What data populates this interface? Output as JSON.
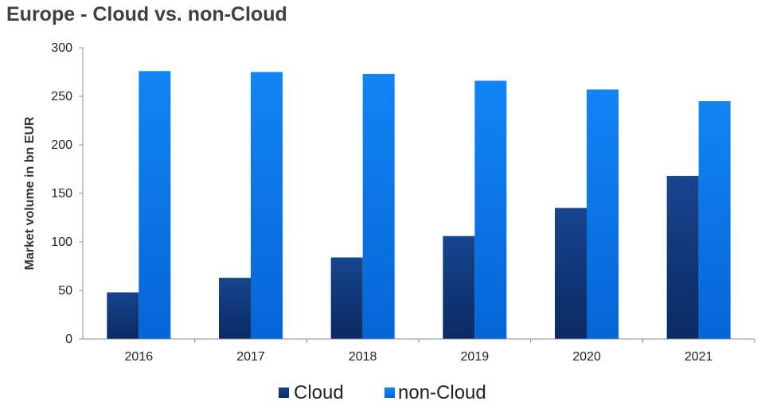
{
  "chart_data": {
    "type": "bar",
    "title": "Europe - Cloud vs. non-Cloud",
    "xlabel": "",
    "ylabel": "Market volume in bn EUR",
    "categories": [
      "2016",
      "2017",
      "2018",
      "2019",
      "2020",
      "2021"
    ],
    "yticks": [
      "0",
      "50",
      "100",
      "150",
      "200",
      "250",
      "300"
    ],
    "ylim": [
      0,
      300
    ],
    "grid": false,
    "legend_position": "bottom",
    "series": [
      {
        "name": "Cloud",
        "values": [
          48,
          63,
          84,
          106,
          135,
          168
        ],
        "color": "#0f3577"
      },
      {
        "name": "non-Cloud",
        "values": [
          276,
          275,
          273,
          266,
          257,
          245
        ],
        "color": "#0a78ee"
      }
    ]
  }
}
